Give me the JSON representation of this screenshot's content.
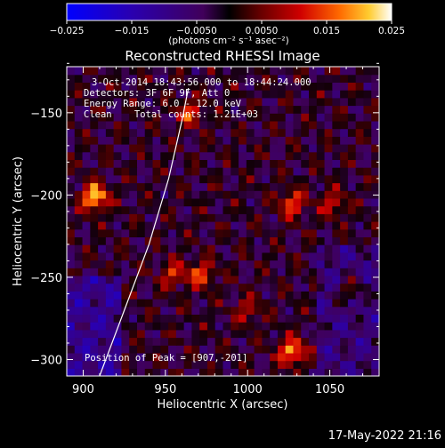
{
  "chart_data": {
    "type": "heatmap",
    "title": "Reconstructed RHESSI Image",
    "xlabel": "Heliocentric X (arcsec)",
    "ylabel": "Heliocentric Y (arcsec)",
    "xlim": [
      890,
      1080
    ],
    "ylim": [
      -310,
      -122
    ],
    "x_ticks": [
      900,
      950,
      1000,
      1050
    ],
    "y_ticks": [
      -150,
      -200,
      -250,
      -300
    ],
    "x_tick_labels": [
      "900",
      "950",
      "1000",
      "1050"
    ],
    "y_tick_labels": [
      "−150",
      "−200",
      "−250",
      "−300"
    ],
    "colorbar": {
      "range": [
        -0.025,
        0.025
      ],
      "ticks": [
        -0.025,
        -0.015,
        -0.005,
        0.005,
        0.015,
        0.025
      ],
      "tick_labels": [
        "−0.025",
        "−0.015",
        "−0.0050",
        "0.0050",
        "0.015",
        "0.025"
      ],
      "unit_label": "(photons cm⁻² s⁻¹ asec⁻²)"
    },
    "annotations": [
      "3-Oct-2014 18:43:56.000 to 18:44:24.000",
      "Detectors: 3F 6F 9F, Att 0",
      "Energy Range: 6.0 - 12.0 keV",
      "Clean    Total counts: 1.21E+03"
    ],
    "peak_label": "Position of Peak = [907,-201]",
    "peak": {
      "x": 907,
      "y": -201
    },
    "hot_spots": [
      {
        "x": 907,
        "y": -201,
        "v": 0.025
      },
      {
        "x": 1027,
        "y": -295,
        "v": 0.022
      },
      {
        "x": 1027,
        "y": -205,
        "v": 0.016
      },
      {
        "x": 972,
        "y": -248,
        "v": 0.015
      },
      {
        "x": 955,
        "y": -248,
        "v": 0.013
      },
      {
        "x": 965,
        "y": -150,
        "v": 0.014
      },
      {
        "x": 1052,
        "y": -205,
        "v": 0.012
      },
      {
        "x": 1063,
        "y": -258,
        "v": 0.011
      },
      {
        "x": 1000,
        "y": -270,
        "v": 0.01
      }
    ],
    "limb_curve": [
      [
        910,
        -310
      ],
      [
        925,
        -270
      ],
      [
        940,
        -230
      ],
      [
        952,
        -190
      ],
      [
        960,
        -155
      ],
      [
        964,
        -135
      ]
    ]
  },
  "footer": {
    "date": "17-May-2022 21:16"
  }
}
